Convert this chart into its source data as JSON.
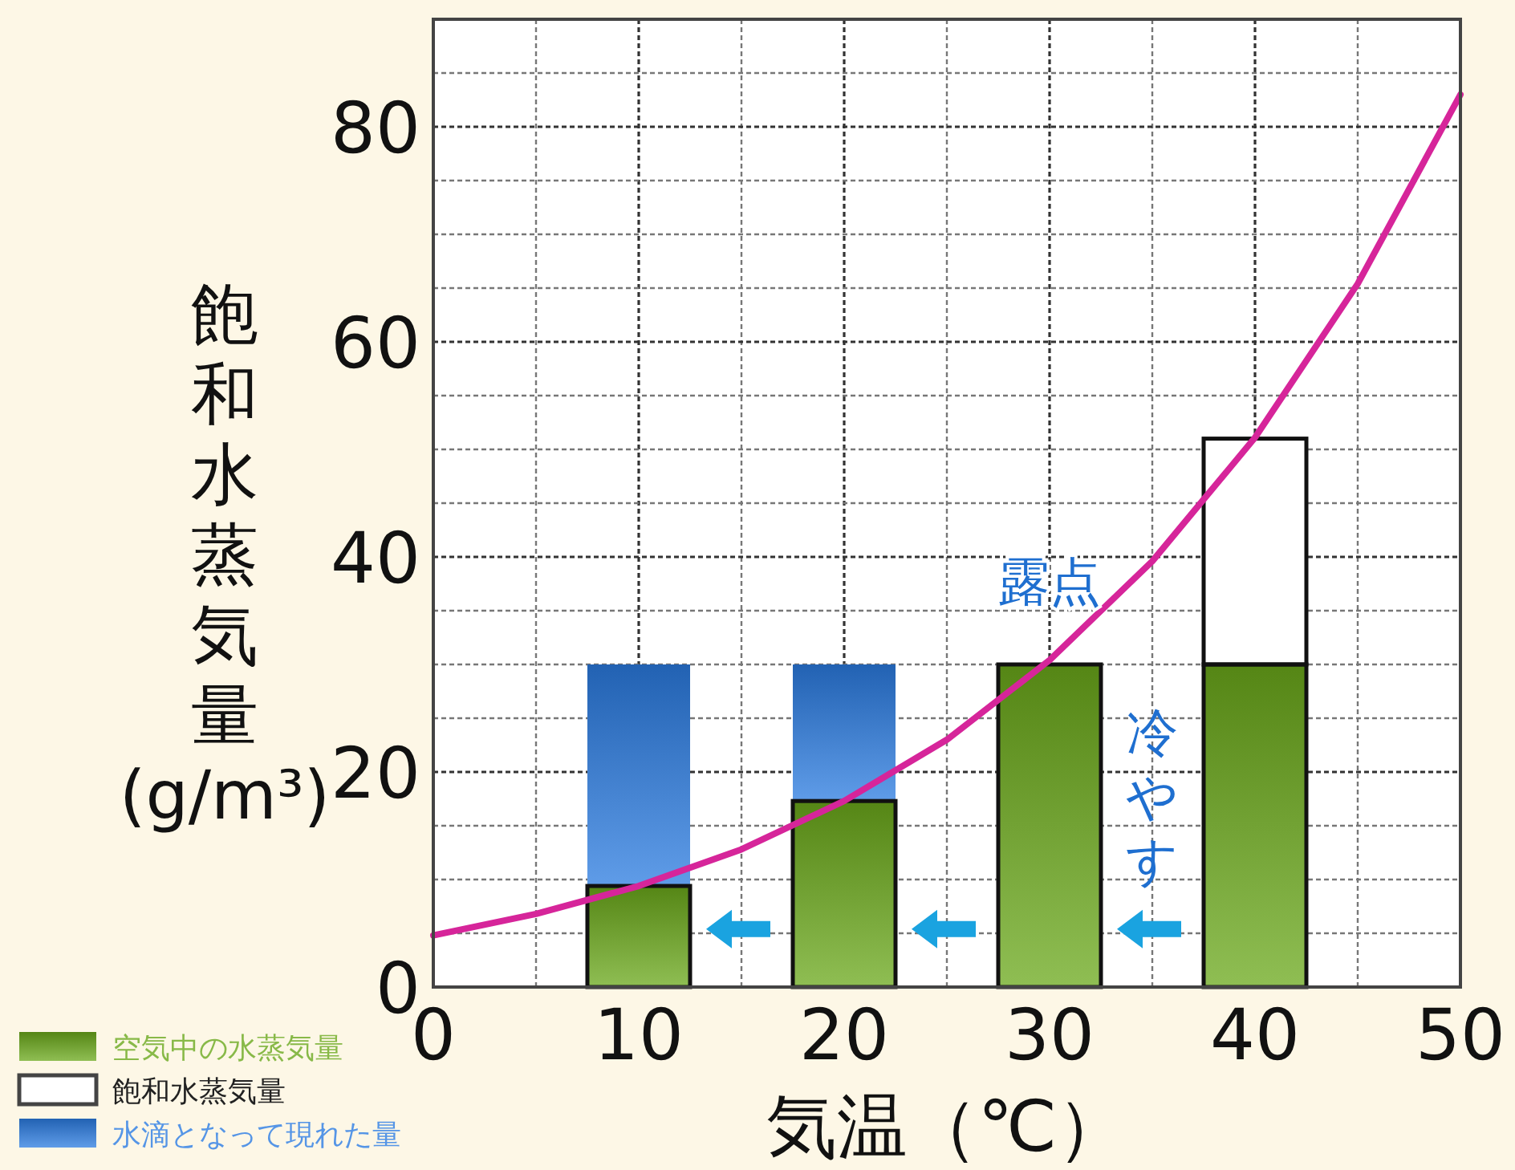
{
  "chart_data": {
    "type": "bar",
    "stacked": true,
    "xlabel": "気温（℃）",
    "ylabel": "飽和水蒸気量(g/m³)",
    "x": [
      10,
      20,
      30,
      40
    ],
    "series": [
      {
        "name": "空気中の水蒸気量",
        "color": "#6aa81a",
        "values": [
          9.4,
          17.3,
          30,
          30
        ]
      },
      {
        "name": "飽和水蒸気量",
        "color": "#ffffff",
        "values": [
          null,
          null,
          null,
          21
        ]
      },
      {
        "name": "水滴となって現れた量",
        "color": "#2a7be0",
        "values": [
          20.6,
          12.7,
          null,
          null
        ]
      },
      {
        "type": "line",
        "color": "#d6259a",
        "x": [
          0,
          5,
          10,
          15,
          20,
          25,
          30,
          35,
          40,
          45,
          50
        ],
        "values": [
          4.8,
          6.8,
          9.4,
          12.8,
          17.3,
          23,
          30.4,
          39.6,
          51.1,
          65.4,
          83
        ]
      }
    ],
    "annotations": [
      {
        "text": "露点",
        "x": 30,
        "y": 30.4
      },
      "冷やす"
    ],
    "xlim": [
      0,
      50
    ],
    "ylim": [
      0,
      90
    ],
    "xticks": [
      0,
      {
        "value": 5,
        "label": null
      },
      10,
      {
        "value": 15,
        "label": null
      },
      20,
      {
        "value": 25,
        "label": null
      },
      30,
      {
        "value": 35,
        "label": null
      },
      40,
      {
        "value": 45,
        "label": null
      },
      50
    ],
    "yticks": [
      0,
      {
        "value": 5,
        "label": null
      },
      {
        "value": 10,
        "label": null
      },
      {
        "value": 15,
        "label": null
      },
      20,
      {
        "value": 25,
        "label": null
      },
      {
        "value": 30,
        "label": null
      },
      {
        "value": 35,
        "label": null
      },
      40,
      {
        "value": 45,
        "label": null
      },
      {
        "value": 50,
        "label": null
      },
      {
        "value": 55,
        "label": null
      },
      60,
      {
        "value": 65,
        "label": null
      },
      {
        "value": 70,
        "label": null
      },
      {
        "value": 75,
        "label": null
      },
      80,
      {
        "value": 85,
        "label": null
      }
    ],
    "grid": true,
    "legend": "bottom left",
    "marker": "none",
    "line_style": "solid"
  }
}
